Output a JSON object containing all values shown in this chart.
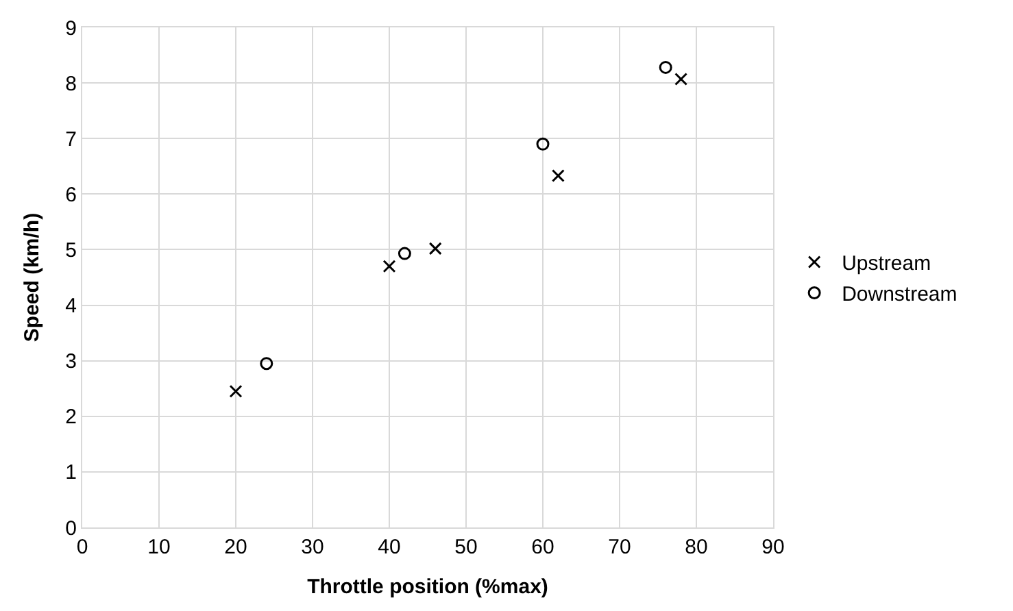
{
  "chart_data": {
    "type": "scatter",
    "xlabel": "Throttle position (%max)",
    "ylabel": "Speed (km/h)",
    "xlim": [
      0,
      90
    ],
    "xticks": [
      0,
      10,
      20,
      30,
      40,
      50,
      60,
      70,
      80,
      90
    ],
    "ylim": [
      0,
      9
    ],
    "yticks": [
      0,
      1,
      2,
      3,
      4,
      5,
      6,
      7,
      8,
      9
    ],
    "grid": true,
    "legend": "right",
    "series": [
      {
        "name": "Upstream",
        "color": "#000000",
        "marker": "cross",
        "x": [
          20,
          40,
          46,
          62,
          78
        ],
        "values": [
          2.45,
          4.7,
          5.02,
          6.33,
          8.07
        ]
      },
      {
        "name": "Downstream",
        "color": "#000000",
        "marker": "circle",
        "x": [
          24,
          42,
          60,
          76
        ],
        "values": [
          2.95,
          4.93,
          6.9,
          8.28
        ]
      }
    ]
  }
}
